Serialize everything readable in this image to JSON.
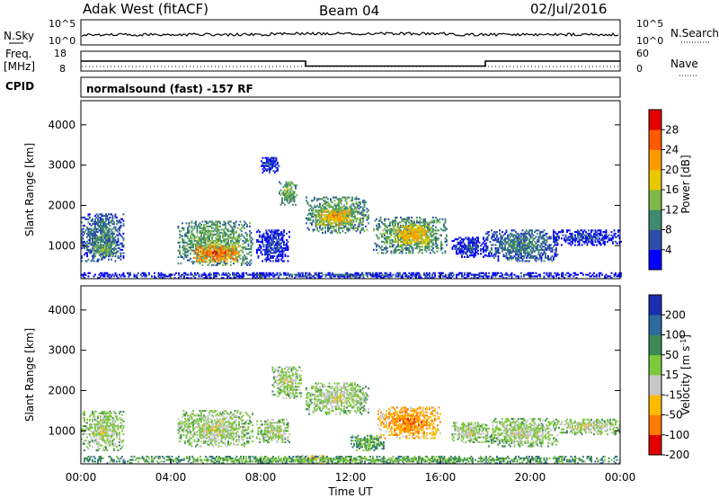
{
  "header": {
    "title": "Adak West (fitACF)",
    "beam": "Beam 04",
    "date": "02/Jul/2016"
  },
  "top_panels": {
    "nsky_label": "N.Sky",
    "nsky_ticks": [
      "10^5",
      "10^0"
    ],
    "nsearch_label": "N.Search",
    "nsearch_ticks": [
      "10^5",
      "10^0"
    ],
    "freq_label": "Freq.",
    "freq_unit": "[MHz]",
    "freq_ticks": [
      "18",
      "8"
    ],
    "nave_label": "Nave",
    "nave_ticks": [
      "60",
      "0"
    ],
    "cpid_label": "CPID",
    "cpid_text": "normalsound (fast) -157 RF",
    "freq_steps": [
      {
        "t_start": 0,
        "t_end": 10,
        "level": 13
      },
      {
        "t_start": 10,
        "t_end": 18,
        "level": 10.5
      },
      {
        "t_start": 18,
        "t_end": 24,
        "level": 13
      }
    ]
  },
  "chart_data": [
    {
      "type": "heatmap",
      "title": "",
      "xlabel": "Time UT",
      "ylabel": "Slant Range [km]",
      "xlim": [
        0,
        24
      ],
      "ylim": [
        180,
        4600
      ],
      "x_ticks": [
        "00:00",
        "04:00",
        "08:00",
        "12:00",
        "16:00",
        "20:00",
        "00:00"
      ],
      "y_ticks": [
        "1000",
        "2000",
        "3000",
        "4000"
      ],
      "colorbar_label": "Power [dB]",
      "colorbar_ticks": [
        "4",
        "8",
        "12",
        "16",
        "20",
        "24",
        "28"
      ],
      "colors": [
        "#0000ff",
        "#2d4ea8",
        "#3e8a6e",
        "#7fb84a",
        "#e8c800",
        "#ff9900",
        "#ff5a00",
        "#e00000"
      ],
      "blobs": [
        {
          "t0": 0.0,
          "t1": 1.9,
          "r0": 600,
          "r1": 1800,
          "level": 2
        },
        {
          "t0": 0.5,
          "t1": 1.6,
          "r0": 700,
          "r1": 1100,
          "level": 3
        },
        {
          "t0": 4.3,
          "t1": 7.6,
          "r0": 500,
          "r1": 1600,
          "level": 3
        },
        {
          "t0": 5.0,
          "t1": 7.0,
          "r0": 600,
          "r1": 1000,
          "level": 6
        },
        {
          "t0": 7.8,
          "t1": 9.3,
          "r0": 600,
          "r1": 1400,
          "level": 1
        },
        {
          "t0": 8.8,
          "t1": 9.6,
          "r0": 2000,
          "r1": 2600,
          "level": 3
        },
        {
          "t0": 10.0,
          "t1": 12.8,
          "r0": 1300,
          "r1": 2200,
          "level": 3
        },
        {
          "t0": 10.5,
          "t1": 12.0,
          "r0": 1500,
          "r1": 1900,
          "level": 5
        },
        {
          "t0": 13.0,
          "t1": 16.3,
          "r0": 800,
          "r1": 1700,
          "level": 3
        },
        {
          "t0": 14.0,
          "t1": 15.5,
          "r0": 1000,
          "r1": 1500,
          "level": 5
        },
        {
          "t0": 16.5,
          "t1": 18.0,
          "r0": 700,
          "r1": 1200,
          "level": 1
        },
        {
          "t0": 18.0,
          "t1": 21.2,
          "r0": 600,
          "r1": 1400,
          "level": 2
        },
        {
          "t0": 21.0,
          "t1": 24.0,
          "r0": 1000,
          "r1": 1400,
          "level": 1
        },
        {
          "t0": 8.0,
          "t1": 8.8,
          "r0": 2800,
          "r1": 3200,
          "level": 1
        },
        {
          "t0": 0.0,
          "t1": 24.0,
          "r0": 180,
          "r1": 320,
          "level": 1
        }
      ]
    },
    {
      "type": "heatmap",
      "title": "",
      "xlabel": "Time UT",
      "ylabel": "Slant Range [km]",
      "xlim": [
        0,
        24
      ],
      "ylim": [
        180,
        4600
      ],
      "x_ticks": [
        "00:00",
        "04:00",
        "08:00",
        "12:00",
        "16:00",
        "20:00",
        "00:00"
      ],
      "y_ticks": [
        "1000",
        "2000",
        "3000",
        "4000"
      ],
      "colorbar_label": "Velocity [m s^-1]",
      "colorbar_ticks": [
        "200",
        "100",
        "50",
        "15",
        "-15",
        "-50",
        "-100",
        "-200"
      ],
      "colors": [
        "#1a2fb0",
        "#2c6a9e",
        "#3e8a56",
        "#7cc93c",
        "#c8c8c8",
        "#ffbb00",
        "#ff7a00",
        "#e00000"
      ],
      "blobs": [
        {
          "t0": 0.0,
          "t1": 1.9,
          "r0": 500,
          "r1": 1500,
          "level": 4
        },
        {
          "t0": 4.3,
          "t1": 7.6,
          "r0": 600,
          "r1": 1500,
          "level": 4
        },
        {
          "t0": 7.8,
          "t1": 9.3,
          "r0": 700,
          "r1": 1300,
          "level": 4
        },
        {
          "t0": 8.5,
          "t1": 9.8,
          "r0": 1800,
          "r1": 2600,
          "level": 4
        },
        {
          "t0": 10.0,
          "t1": 12.8,
          "r0": 1400,
          "r1": 2200,
          "level": 4
        },
        {
          "t0": 12.0,
          "t1": 13.5,
          "r0": 500,
          "r1": 900,
          "level": 3
        },
        {
          "t0": 13.2,
          "t1": 16.0,
          "r0": 800,
          "r1": 1600,
          "level": 6
        },
        {
          "t0": 16.5,
          "t1": 18.0,
          "r0": 700,
          "r1": 1200,
          "level": 4
        },
        {
          "t0": 18.0,
          "t1": 21.2,
          "r0": 600,
          "r1": 1300,
          "level": 4
        },
        {
          "t0": 21.0,
          "t1": 24.0,
          "r0": 900,
          "r1": 1300,
          "level": 4
        },
        {
          "t0": 9.5,
          "t1": 11.0,
          "r0": 200,
          "r1": 400,
          "level": 5
        },
        {
          "t0": 0.0,
          "t1": 24.0,
          "r0": 180,
          "r1": 350,
          "level": 3
        }
      ]
    }
  ]
}
